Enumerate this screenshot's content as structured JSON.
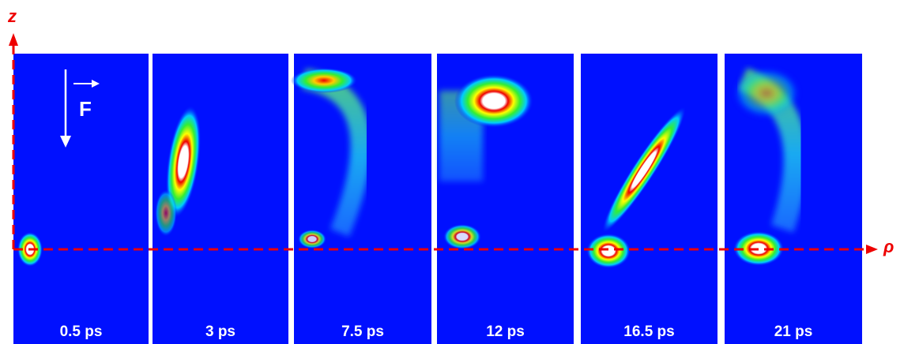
{
  "axes": {
    "vertical": "z",
    "horizontal": "ρ"
  },
  "force_label": "F",
  "panels": [
    {
      "time": "0.5 ps"
    },
    {
      "time": "3 ps"
    },
    {
      "time": "7.5 ps"
    },
    {
      "time": "12 ps"
    },
    {
      "time": "16.5 ps"
    },
    {
      "time": "21 ps"
    }
  ]
}
